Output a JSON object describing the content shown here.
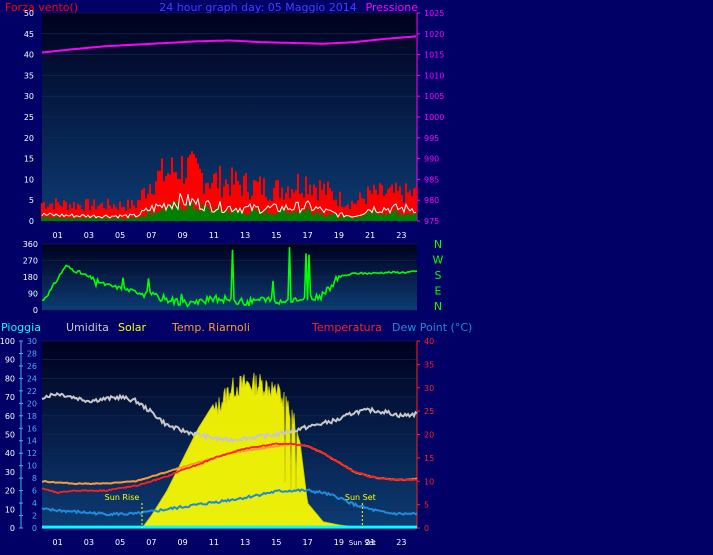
{
  "colors": {
    "background": "#000066",
    "plot_bg_top": "#00001e",
    "plot_bg_bottom": "#0c3c74",
    "wind": "#ff0000",
    "gust_white": "#ffffff",
    "wind_avg_green": "#008000",
    "pressure": "#ff00ff",
    "direction": "#00ff00",
    "humidity": "#c8c8c8",
    "solar": "#ffff00",
    "temp_riarnoli": "#ff9933",
    "temperature": "#ff2020",
    "dew_point": "#1e8cdc",
    "rain": "#00ffff",
    "axis_text": "#ffffff",
    "sun_markers": "#ffff00"
  },
  "chart_data": [
    {
      "type": "line",
      "id": "wind-pressure",
      "title": "24 hour graph day: 05 Maggio 2014",
      "left_label": "Forza vento()",
      "right_label": "Pressione",
      "x_ticks": [
        "01",
        "03",
        "05",
        "07",
        "09",
        "11",
        "13",
        "15",
        "17",
        "19",
        "21",
        "23"
      ],
      "ylim_left": [
        0,
        50
      ],
      "y_ticks_left": [
        0,
        5,
        10,
        15,
        20,
        25,
        30,
        35,
        40,
        45,
        50
      ],
      "ylim_right": [
        975,
        1025
      ],
      "y_ticks_right": [
        975,
        980,
        985,
        990,
        995,
        1000,
        1005,
        1010,
        1015,
        1020,
        1025
      ],
      "x_range_hours": [
        0,
        24
      ],
      "series": [
        {
          "key": "pressure",
          "axis": "right",
          "x": [
            0,
            2,
            4,
            6,
            8,
            10,
            12,
            14,
            16,
            18,
            20,
            22,
            24
          ],
          "y": [
            1015.5,
            1016.3,
            1017,
            1017.4,
            1017.8,
            1018.2,
            1018.4,
            1018.0,
            1017.8,
            1017.6,
            1018.0,
            1018.8,
            1019.4
          ]
        },
        {
          "key": "wind",
          "axis": "left",
          "x": [
            0,
            3,
            6,
            7,
            9,
            11,
            13,
            15,
            17,
            19,
            20,
            21,
            24
          ],
          "y": [
            4,
            3.5,
            3.5,
            9,
            12,
            9,
            8,
            7,
            9,
            5,
            4,
            6,
            6
          ]
        },
        {
          "key": "gust_white",
          "axis": "left",
          "x": [
            0,
            3,
            6,
            7,
            9,
            11,
            13,
            15,
            17,
            19,
            20,
            21,
            24
          ],
          "y": [
            1.5,
            1.2,
            1.2,
            3,
            5,
            3.5,
            3,
            3,
            3.5,
            1.5,
            1.2,
            3,
            3
          ]
        },
        {
          "key": "wind_avg_green",
          "axis": "left",
          "x": [
            0,
            3,
            6,
            7,
            9,
            11,
            13,
            15,
            17,
            19,
            20,
            21,
            24
          ],
          "y": [
            0.8,
            0.7,
            0.7,
            2,
            3.5,
            2.5,
            2,
            2,
            2.5,
            1,
            0.8,
            2,
            2
          ]
        }
      ]
    },
    {
      "type": "line",
      "id": "direction",
      "ylim": [
        0,
        360
      ],
      "y_ticks": [
        0,
        90,
        180,
        270,
        360
      ],
      "right_letters": [
        "N",
        "W",
        "S",
        "E",
        "N"
      ],
      "series": [
        {
          "key": "direction",
          "x": [
            0,
            0.5,
            1.5,
            2,
            3,
            4,
            5,
            6,
            7,
            8,
            9,
            10,
            11,
            12,
            13,
            14,
            15,
            16,
            17,
            18,
            19,
            20,
            21,
            22,
            23,
            24
          ],
          "y": [
            50,
            100,
            240,
            220,
            180,
            140,
            120,
            100,
            80,
            60,
            40,
            40,
            60,
            60,
            40,
            60,
            40,
            60,
            60,
            80,
            180,
            200,
            200,
            205,
            205,
            210
          ]
        }
      ]
    },
    {
      "type": "line",
      "id": "thermo",
      "labels": [
        "Pioggia",
        "Umidita",
        "Solar",
        "Temp. Riarnoli",
        "Temperatura",
        "Dew Point (°C)"
      ],
      "x_ticks": [
        "01",
        "03",
        "05",
        "07",
        "09",
        "11",
        "13",
        "15",
        "17",
        "19",
        "21",
        "23"
      ],
      "ylim_rain": [
        0,
        100
      ],
      "y_ticks_rain": [
        0,
        10,
        20,
        30,
        40,
        50,
        60,
        70,
        80,
        90,
        100
      ],
      "ylim_solar": [
        0,
        30
      ],
      "y_ticks_solar": [
        0,
        2,
        4,
        6,
        8,
        10,
        12,
        14,
        16,
        18,
        20,
        22,
        24,
        26,
        28,
        30
      ],
      "ylim_temp": [
        0,
        40
      ],
      "y_ticks_temp": [
        0,
        5,
        10,
        15,
        20,
        25,
        30,
        35,
        40
      ],
      "sun_rise_label": "Sun Rise",
      "sun_set_label": "Sun Set",
      "sun_rise_hour": 6.4,
      "sun_set_hour": 20.5,
      "series": [
        {
          "key": "humidity",
          "axis": "rain",
          "x": [
            0,
            1,
            2,
            3,
            4,
            5,
            6,
            7,
            8,
            9,
            10,
            11,
            12,
            13,
            14,
            15,
            16,
            17,
            18,
            19,
            20,
            21,
            22,
            23,
            24
          ],
          "y": [
            70,
            72,
            70,
            68,
            69,
            70,
            68,
            62,
            55,
            52,
            50,
            48,
            47,
            48,
            49,
            50,
            52,
            54,
            56,
            58,
            62,
            63,
            62,
            60,
            61
          ]
        },
        {
          "key": "solar",
          "axis": "solar",
          "x": [
            0,
            6.4,
            7,
            8,
            9,
            10,
            11,
            12,
            13,
            14,
            15,
            16,
            16.5,
            17,
            18,
            19,
            20.5,
            24
          ],
          "y": [
            0,
            0,
            2,
            6,
            11,
            16,
            20,
            24,
            25,
            25,
            24,
            20,
            14,
            4,
            1,
            0.5,
            0,
            0
          ]
        },
        {
          "key": "temp_riarnoli",
          "axis": "temp",
          "x": [
            0,
            2,
            4,
            6,
            7,
            8,
            9,
            10,
            11,
            12,
            13,
            14,
            15,
            16,
            17,
            18,
            19,
            20,
            21,
            22,
            23,
            24
          ],
          "y": [
            10,
            9.5,
            9.5,
            10,
            11,
            12,
            13,
            14,
            15,
            16,
            16.5,
            17,
            17.5,
            18,
            17.5,
            16,
            14,
            12,
            11,
            10.5,
            10.3,
            10.5
          ]
        },
        {
          "key": "temperature",
          "axis": "temp",
          "x": [
            0,
            1,
            2,
            4,
            6,
            7,
            8,
            9,
            10,
            11,
            12,
            13,
            14,
            15,
            16,
            17,
            18,
            19,
            20,
            21,
            22,
            23,
            24
          ],
          "y": [
            8.5,
            7.5,
            8,
            8,
            9,
            10,
            11,
            12.5,
            13.5,
            15,
            16,
            17,
            17.5,
            18,
            18,
            17.5,
            16,
            14,
            12,
            11,
            10.5,
            10.3,
            10.3
          ]
        },
        {
          "key": "dew_point",
          "axis": "temp",
          "x": [
            0,
            2,
            4,
            6,
            7,
            8,
            9,
            10,
            11,
            12,
            13,
            14,
            15,
            16,
            17,
            18,
            19,
            20,
            21,
            22,
            23,
            24
          ],
          "y": [
            4,
            3.5,
            3,
            3,
            3.5,
            4,
            4.5,
            5,
            5.5,
            6,
            6.5,
            7.2,
            7.8,
            8,
            8,
            7.5,
            6.5,
            5,
            4,
            3.2,
            3,
            3
          ]
        },
        {
          "key": "rain",
          "axis": "rain",
          "x": [
            0,
            24
          ],
          "y": [
            0.5,
            0.5
          ]
        }
      ]
    }
  ]
}
